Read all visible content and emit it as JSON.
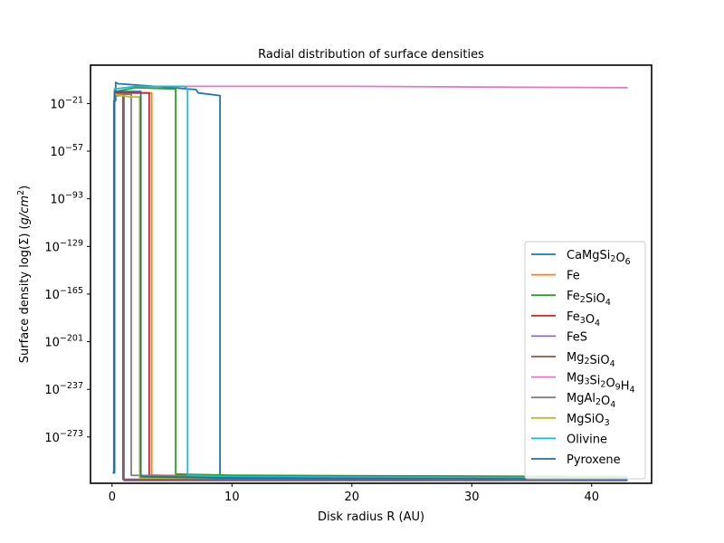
{
  "chart_data": {
    "type": "line",
    "title": "Radial distribution of surface densities",
    "xlabel": "Disk radius R (AU)",
    "ylabel_parts": [
      "Surface density log(Σ) (",
      "g",
      "/",
      "cm",
      "2",
      ")"
    ],
    "xlim": [
      -1.8,
      45
    ],
    "ylim_exp": [
      -308,
      8
    ],
    "yscale": "log",
    "grid": false,
    "legend_position": "lower right",
    "x_ticks": [
      {
        "value": 0,
        "label": "0"
      },
      {
        "value": 10,
        "label": "10"
      },
      {
        "value": 20,
        "label": "20"
      },
      {
        "value": 30,
        "label": "30"
      },
      {
        "value": 40,
        "label": "40"
      }
    ],
    "y_ticks": [
      {
        "exp": -21,
        "base": "10",
        "sup": "−21"
      },
      {
        "exp": -57,
        "base": "10",
        "sup": "−57"
      },
      {
        "exp": -93,
        "base": "10",
        "sup": "−93"
      },
      {
        "exp": -129,
        "base": "10",
        "sup": "−129"
      },
      {
        "exp": -165,
        "base": "10",
        "sup": "−165"
      },
      {
        "exp": -201,
        "base": "10",
        "sup": "−201"
      },
      {
        "exp": -237,
        "base": "10",
        "sup": "−237"
      },
      {
        "exp": -273,
        "base": "10",
        "sup": "−273"
      }
    ],
    "series": [
      {
        "name": "CaMgSi2O6",
        "label_parts": [
          [
            "CaMgSi",
            ""
          ],
          [
            "2",
            "sub"
          ],
          [
            "O",
            ""
          ],
          [
            "6",
            "sub"
          ]
        ],
        "color": "#1f77b4",
        "points": [
          [
            0.05,
            -300
          ],
          [
            0.15,
            -300
          ],
          [
            0.15,
            -19
          ],
          [
            0.3,
            -19
          ],
          [
            0.3,
            -5
          ],
          [
            0.5,
            -6
          ],
          [
            2,
            -7
          ],
          [
            5,
            -9
          ],
          [
            7,
            -10.5
          ],
          [
            7.2,
            -13
          ],
          [
            9,
            -15
          ],
          [
            9,
            -303
          ],
          [
            20,
            -304
          ],
          [
            30,
            -305
          ],
          [
            43,
            -305.5
          ]
        ]
      },
      {
        "name": "Fe",
        "label_parts": [
          [
            "Fe",
            ""
          ]
        ],
        "color": "#ff7f0e",
        "points": [
          [
            0.05,
            -300
          ],
          [
            0.2,
            -300
          ],
          [
            0.2,
            -13
          ],
          [
            2,
            -13
          ],
          [
            3.3,
            -13
          ],
          [
            3.3,
            -302
          ],
          [
            10,
            -303
          ],
          [
            43,
            -304
          ]
        ]
      },
      {
        "name": "Fe2SiO4",
        "label_parts": [
          [
            "Fe",
            ""
          ],
          [
            "2",
            "sub"
          ],
          [
            "SiO",
            ""
          ],
          [
            "4",
            "sub"
          ]
        ],
        "color": "#2ca02c",
        "points": [
          [
            0.05,
            -300
          ],
          [
            0.2,
            -300
          ],
          [
            0.2,
            -12
          ],
          [
            2,
            -9
          ],
          [
            5.3,
            -10
          ],
          [
            5.3,
            -301
          ],
          [
            10,
            -302
          ],
          [
            43,
            -303
          ]
        ]
      },
      {
        "name": "Fe3O4",
        "label_parts": [
          [
            "Fe",
            ""
          ],
          [
            "3",
            "sub"
          ],
          [
            "O",
            ""
          ],
          [
            "4",
            "sub"
          ]
        ],
        "color": "#d62728",
        "points": [
          [
            0.05,
            -300
          ],
          [
            0.2,
            -300
          ],
          [
            0.2,
            -13
          ],
          [
            3.1,
            -13
          ],
          [
            3.1,
            -302
          ],
          [
            10,
            -303
          ],
          [
            43,
            -304
          ]
        ]
      },
      {
        "name": "FeS",
        "label_parts": [
          [
            "FeS",
            ""
          ]
        ],
        "color": "#9467bd",
        "points": [
          [
            0.05,
            -300
          ],
          [
            0.2,
            -300
          ],
          [
            0.2,
            -14
          ],
          [
            1.0,
            -14
          ],
          [
            1.0,
            -306
          ],
          [
            10,
            -306
          ],
          [
            43,
            -306
          ]
        ]
      },
      {
        "name": "Mg2SiO4",
        "label_parts": [
          [
            "Mg",
            ""
          ],
          [
            "2",
            "sub"
          ],
          [
            "SiO",
            ""
          ],
          [
            "4",
            "sub"
          ]
        ],
        "color": "#8c564b",
        "points": [
          [
            0.05,
            -300
          ],
          [
            0.2,
            -300
          ],
          [
            0.2,
            -15
          ],
          [
            0.9,
            -15
          ],
          [
            0.9,
            -305
          ],
          [
            10,
            -305
          ],
          [
            43,
            -305
          ]
        ]
      },
      {
        "name": "Mg3Si2O9H4",
        "label_parts": [
          [
            "Mg",
            ""
          ],
          [
            "3",
            "sub"
          ],
          [
            "Si",
            ""
          ],
          [
            "2",
            "sub"
          ],
          [
            "O",
            ""
          ],
          [
            "9",
            "sub"
          ],
          [
            "H",
            ""
          ],
          [
            "4",
            "sub"
          ]
        ],
        "color": "#e377c2",
        "points": [
          [
            2.2,
            -8
          ],
          [
            10,
            -8
          ],
          [
            20,
            -8
          ],
          [
            30,
            -8.5
          ],
          [
            43,
            -9
          ]
        ]
      },
      {
        "name": "MgAl2O4",
        "label_parts": [
          [
            "MgAl",
            ""
          ],
          [
            "2",
            "sub"
          ],
          [
            "O",
            ""
          ],
          [
            "4",
            "sub"
          ]
        ],
        "color": "#7f7f7f",
        "points": [
          [
            0.05,
            -300
          ],
          [
            0.2,
            -300
          ],
          [
            0.2,
            -14
          ],
          [
            1.6,
            -14
          ],
          [
            1.6,
            -302
          ],
          [
            10,
            -303
          ],
          [
            43,
            -304
          ]
        ]
      },
      {
        "name": "MgSiO3",
        "label_parts": [
          [
            "MgSiO",
            ""
          ],
          [
            "3",
            "sub"
          ]
        ],
        "color": "#bcbd22",
        "points": [
          [
            0.05,
            -300
          ],
          [
            0.2,
            -300
          ],
          [
            0.2,
            -14
          ],
          [
            1.5,
            -16
          ],
          [
            2.3,
            -16
          ],
          [
            2.3,
            -304
          ],
          [
            10,
            -304
          ],
          [
            43,
            -305
          ]
        ]
      },
      {
        "name": "Olivine",
        "label_parts": [
          [
            "Olivine",
            ""
          ]
        ],
        "color": "#17becf",
        "points": [
          [
            0.05,
            -300
          ],
          [
            0.2,
            -300
          ],
          [
            0.2,
            -10
          ],
          [
            2,
            -8
          ],
          [
            6,
            -8
          ],
          [
            6.3,
            -10
          ],
          [
            6.3,
            -302
          ],
          [
            10,
            -303
          ],
          [
            43,
            -304
          ]
        ]
      },
      {
        "name": "Pyroxene",
        "label_parts": [
          [
            "Pyroxene",
            ""
          ]
        ],
        "color": "#1f6f9f",
        "points": [
          [
            0.05,
            -300
          ],
          [
            0.2,
            -300
          ],
          [
            0.2,
            -12
          ],
          [
            2.4,
            -12
          ],
          [
            2.4,
            -303
          ],
          [
            10,
            -304
          ],
          [
            43,
            -305
          ]
        ]
      }
    ]
  }
}
